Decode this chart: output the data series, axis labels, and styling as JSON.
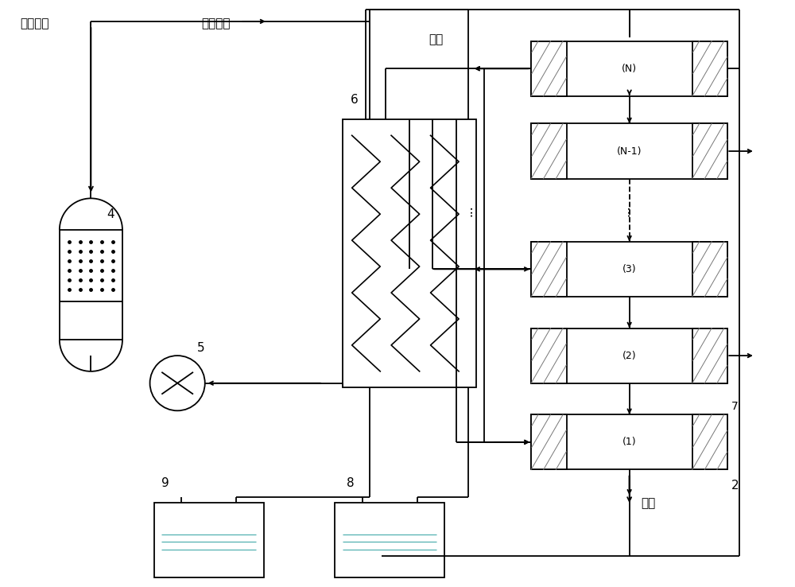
{
  "bg_color": "#ffffff",
  "line_color": "#000000",
  "labels": {
    "raw_air": "原料空气",
    "refrigerant": "制冷工质",
    "nitrogen": "氮气",
    "oxygen": "氧气",
    "num4": "4",
    "num5": "5",
    "num6": "6",
    "num7": "7",
    "num8": "8",
    "num9": "9",
    "num2": "2",
    "box_N": "(N)",
    "box_N1": "(N-1)",
    "box_3": "(3)",
    "box_2": "(2)",
    "box_1": "(1)"
  }
}
